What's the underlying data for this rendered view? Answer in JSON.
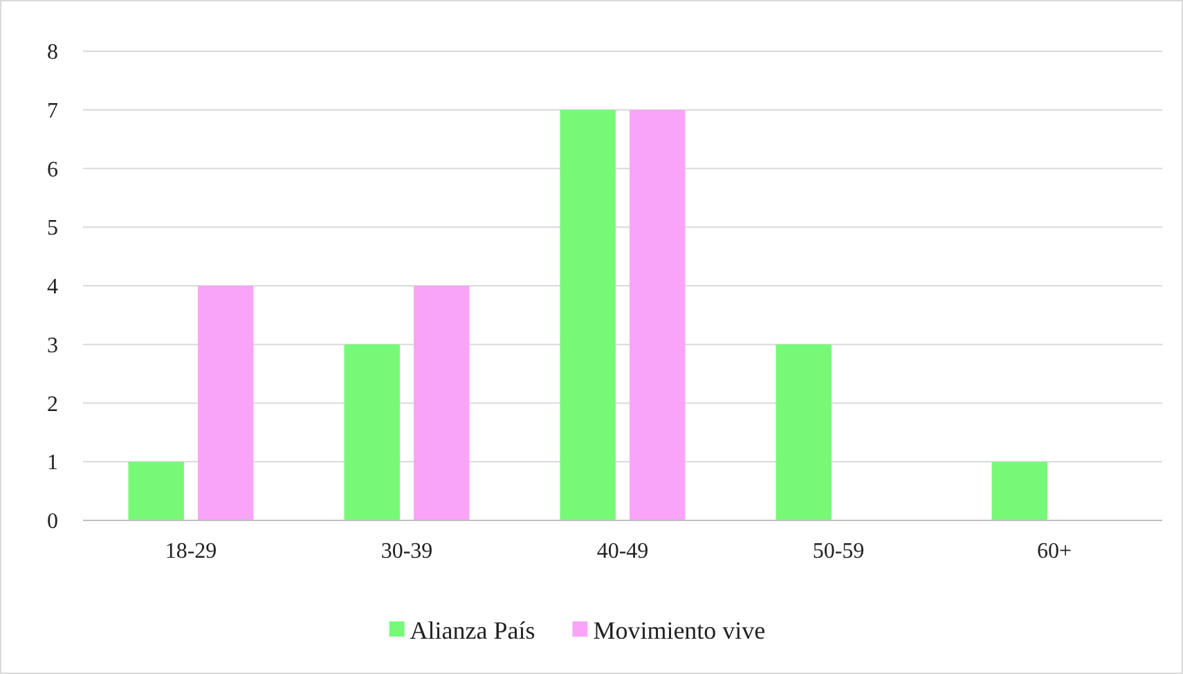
{
  "chart_data": {
    "type": "bar",
    "categories": [
      "18-29",
      "30-39",
      "40-49",
      "50-59",
      "60+"
    ],
    "series": [
      {
        "name": "Alianza País",
        "color": "#77f977",
        "values": [
          1,
          3,
          7,
          3,
          1
        ]
      },
      {
        "name": "Movimiento vive",
        "color": "#f9a3f9",
        "values": [
          4,
          4,
          7,
          0,
          0
        ]
      }
    ],
    "ylim": [
      0,
      8
    ],
    "yticks": [
      0,
      1,
      2,
      3,
      4,
      5,
      6,
      7,
      8
    ],
    "grid": "y",
    "legend": "bottom"
  }
}
